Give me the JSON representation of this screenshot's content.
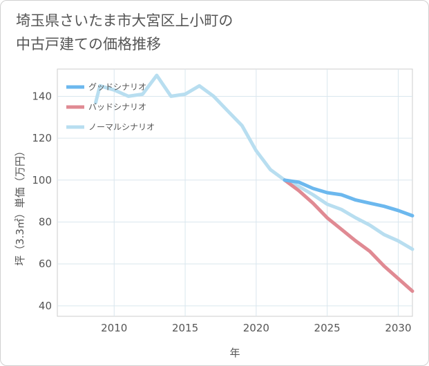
{
  "chart_data": {
    "type": "line",
    "title_line1": "埼玉県さいたま市大宮区上小町の",
    "title_line2": "中古戸建ての価格推移",
    "xlabel": "年",
    "ylabel": "坪（3.3㎡）単価（万円）",
    "xlim": [
      2006,
      2031
    ],
    "ylim": [
      35,
      153
    ],
    "x_ticks": [
      2010,
      2015,
      2020,
      2025,
      2030
    ],
    "y_ticks": [
      40,
      60,
      80,
      100,
      120,
      140
    ],
    "legend_position": "top-left",
    "series": [
      {
        "name": "グッドシナリオ",
        "color": "#6cb8ee",
        "points": [
          [
            2022,
            100
          ],
          [
            2023,
            99
          ],
          [
            2024,
            96
          ],
          [
            2025,
            94
          ],
          [
            2026,
            93
          ],
          [
            2027,
            90.5
          ],
          [
            2028,
            89
          ],
          [
            2029,
            87.5
          ],
          [
            2030,
            85.5
          ],
          [
            2031,
            83
          ]
        ]
      },
      {
        "name": "バッドシナリオ",
        "color": "#e08a93",
        "points": [
          [
            2022,
            100
          ],
          [
            2023,
            95
          ],
          [
            2024,
            89
          ],
          [
            2025,
            82
          ],
          [
            2026,
            76.5
          ],
          [
            2027,
            71
          ],
          [
            2028,
            66
          ],
          [
            2029,
            59
          ],
          [
            2030,
            53
          ],
          [
            2031,
            47
          ]
        ]
      },
      {
        "name": "ノーマルシナリオ",
        "color": "#b8def0",
        "points": [
          [
            2008.7,
            137
          ],
          [
            2009,
            145
          ],
          [
            2010,
            143
          ],
          [
            2011,
            140
          ],
          [
            2012,
            141
          ],
          [
            2013,
            150
          ],
          [
            2014,
            140
          ],
          [
            2015,
            141
          ],
          [
            2016,
            145
          ],
          [
            2017,
            140
          ],
          [
            2018,
            133
          ],
          [
            2019,
            126
          ],
          [
            2020,
            114
          ],
          [
            2021,
            105
          ],
          [
            2022,
            100
          ],
          [
            2023,
            97
          ],
          [
            2024,
            93
          ],
          [
            2025,
            88.5
          ],
          [
            2026,
            86
          ],
          [
            2027,
            82
          ],
          [
            2028,
            78.5
          ],
          [
            2029,
            74
          ],
          [
            2030,
            71
          ],
          [
            2031,
            67
          ]
        ]
      }
    ]
  }
}
